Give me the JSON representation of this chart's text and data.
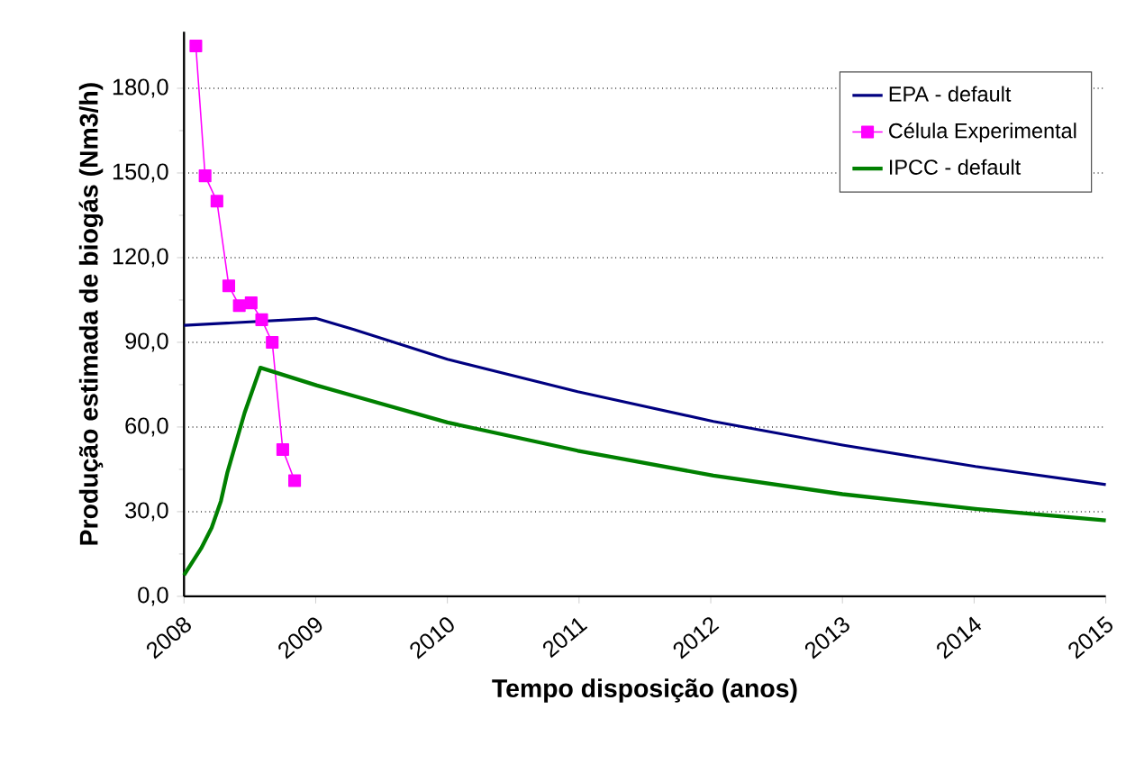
{
  "chart_data": {
    "type": "line",
    "xlabel": "Tempo disposição (anos)",
    "ylabel": "Produção estimada de biogás (Nm3/h)",
    "xlim": [
      2008,
      2015
    ],
    "xticks": [
      2008,
      2009,
      2010,
      2011,
      2012,
      2013,
      2014,
      2015
    ],
    "ylim": [
      0,
      200
    ],
    "yticks": [
      {
        "value": 0,
        "label": "0,0"
      },
      {
        "value": 30,
        "label": "30,0"
      },
      {
        "value": 60,
        "label": "60,0"
      },
      {
        "value": 90,
        "label": "90,0"
      },
      {
        "value": 120,
        "label": "120,0"
      },
      {
        "value": 150,
        "label": "150,0"
      },
      {
        "value": 180,
        "label": "180,0"
      }
    ],
    "grid": "y",
    "legend": "top right",
    "series": [
      {
        "name": "EPA - default",
        "color": "#000080",
        "marker": "none",
        "x": [
          2008.0,
          2009.0,
          2009.29,
          2010.0,
          2010.99,
          2012.02,
          2013.0,
          2014.01,
          2015.0
        ],
        "values": [
          96,
          98.5,
          94.5,
          84,
          72.5,
          62,
          53.6,
          46,
          39.6
        ]
      },
      {
        "name": "Célula Experimental",
        "color": "#ff00ff",
        "marker": "square",
        "x": [
          2008.09,
          2008.16,
          2008.25,
          2008.34,
          2008.42,
          2008.51,
          2008.59,
          2008.67,
          2008.75,
          2008.84
        ],
        "values": [
          195,
          149,
          140,
          110,
          103,
          104,
          98,
          90,
          52,
          41
        ]
      },
      {
        "name": "IPCC - default",
        "color": "#008000",
        "marker": "none",
        "x": [
          2008.0,
          2008.13,
          2008.21,
          2008.28,
          2008.33,
          2008.46,
          2008.58,
          2009.01,
          2009.29,
          2010.0,
          2010.99,
          2012.02,
          2013.0,
          2014.01,
          2015.0
        ],
        "values": [
          7.5,
          17,
          24.3,
          33.7,
          44,
          65,
          81,
          74.7,
          71,
          61.6,
          51.6,
          42.8,
          36.2,
          31,
          26.9
        ]
      }
    ]
  }
}
